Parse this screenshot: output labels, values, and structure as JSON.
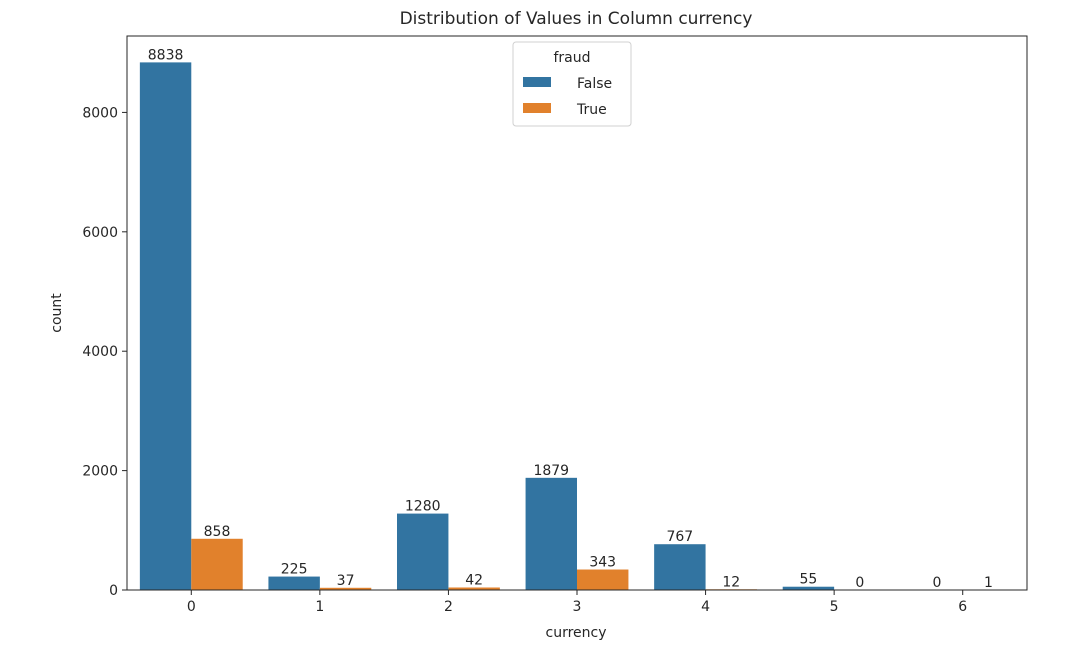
{
  "chart_data": {
    "type": "bar",
    "title": "Distribution of Values in Column currency",
    "xlabel": "currency",
    "ylabel": "count",
    "categories": [
      "0",
      "1",
      "2",
      "3",
      "4",
      "5",
      "6"
    ],
    "series": [
      {
        "name": "False",
        "color": "#3274a1",
        "values": [
          8838,
          225,
          1280,
          1879,
          767,
          55,
          0
        ]
      },
      {
        "name": "True",
        "color": "#e1812c",
        "values": [
          858,
          37,
          42,
          343,
          12,
          0,
          1
        ]
      }
    ],
    "yticks": [
      0,
      2000,
      4000,
      6000,
      8000
    ],
    "ylim": [
      0,
      9280
    ],
    "legend": {
      "title": "fraud",
      "placement": "top-center"
    },
    "grid": false
  }
}
